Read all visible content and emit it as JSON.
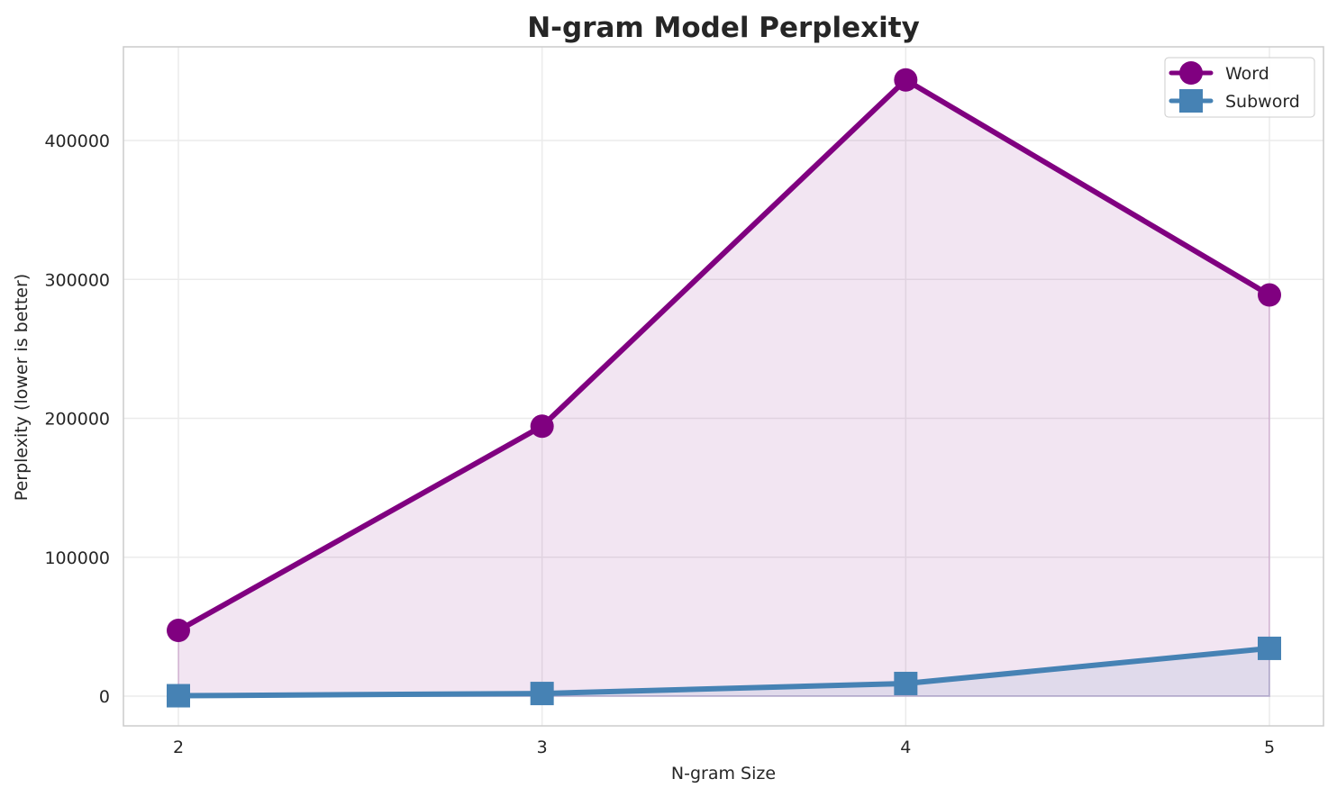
{
  "chart_data": {
    "type": "line",
    "title": "N-gram Model Perplexity",
    "xlabel": "N-gram Size",
    "ylabel": "Perplexity (lower is better)",
    "x": [
      2,
      3,
      4,
      5
    ],
    "x_tick_labels": [
      "2",
      "3",
      "4",
      "5"
    ],
    "y_ticks": [
      0,
      100000,
      200000,
      300000,
      400000
    ],
    "y_tick_labels": [
      "0",
      "100000",
      "200000",
      "300000",
      "400000"
    ],
    "ylim": [
      -21000,
      467000
    ],
    "xlim": [
      1.85,
      5.15
    ],
    "grid": true,
    "legend_position": "upper right",
    "series": [
      {
        "name": "Word",
        "color": "#800080",
        "marker": "circle",
        "fill_under": true,
        "fill_color": "#800080",
        "fill_alpha": 0.1,
        "values": [
          47300,
          194300,
          443600,
          288800
        ]
      },
      {
        "name": "Subword",
        "color": "#4682B4",
        "marker": "square",
        "fill_under": true,
        "fill_color": "#4682B4",
        "fill_alpha": 0.1,
        "values": [
          300,
          1900,
          9100,
          34400
        ]
      }
    ]
  },
  "legend": {
    "items": [
      {
        "label": "Word"
      },
      {
        "label": "Subword"
      }
    ]
  }
}
